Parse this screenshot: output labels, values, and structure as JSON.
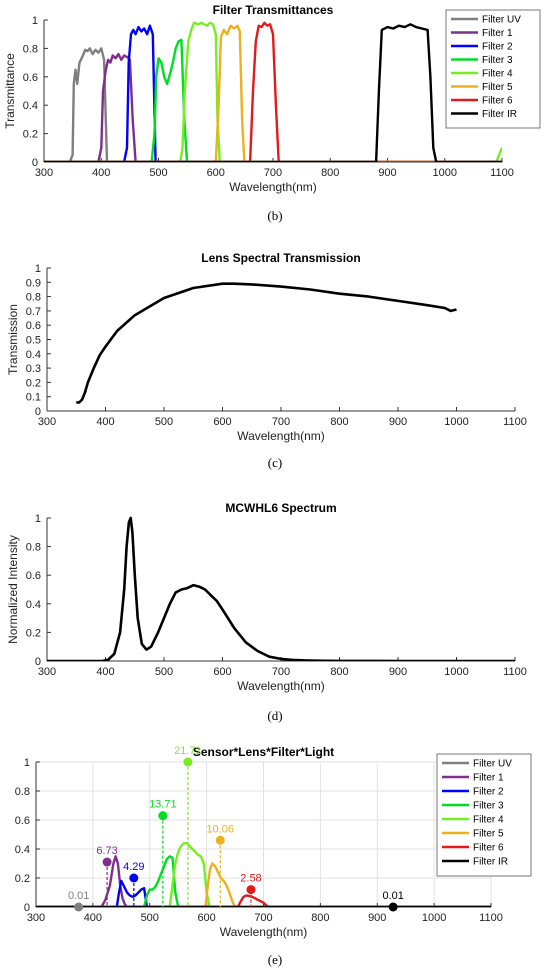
{
  "colors": {
    "Filter UV": "#7f7f7f",
    "Filter 1": "#7e2f8e",
    "Filter 2": "#0000ff",
    "Filter 3": "#00dd22",
    "Filter 4": "#77ee22",
    "Filter 5": "#edb120",
    "Filter 6": "#e31a1c",
    "Filter IR": "#000000"
  },
  "captions": {
    "b": "(b)",
    "c": "(c)",
    "d": "(d)",
    "e": "(e)"
  },
  "chart_data": [
    {
      "id": "b",
      "type": "line",
      "title": "Filter Transmittances",
      "xlabel": "Wavelength(nm)",
      "ylabel": "Transmittance",
      "xlim": [
        300,
        1100
      ],
      "ylim": [
        0,
        1
      ],
      "xticks": [
        300,
        400,
        500,
        600,
        700,
        800,
        900,
        1000,
        1100
      ],
      "yticks": [
        0,
        0.2,
        0.4,
        0.6,
        0.8,
        1
      ],
      "legend_position": "top-right",
      "grid": false,
      "series": [
        {
          "name": "Filter UV",
          "x": [
            300,
            345,
            350,
            352,
            355,
            358,
            362,
            368,
            372,
            376,
            380,
            385,
            390,
            395,
            400,
            405,
            410,
            450,
            1100
          ],
          "y": [
            0,
            0,
            0.05,
            0.55,
            0.65,
            0.55,
            0.7,
            0.75,
            0.79,
            0.78,
            0.8,
            0.76,
            0.79,
            0.77,
            0.8,
            0.72,
            0,
            0,
            0
          ]
        },
        {
          "name": "Filter 1",
          "x": [
            300,
            395,
            400,
            403,
            408,
            412,
            416,
            420,
            425,
            430,
            435,
            440,
            445,
            450,
            455,
            460,
            1100
          ],
          "y": [
            0,
            0,
            0.1,
            0.5,
            0.65,
            0.72,
            0.7,
            0.75,
            0.73,
            0.76,
            0.72,
            0.75,
            0.74,
            0.72,
            0.3,
            0,
            0
          ]
        },
        {
          "name": "Filter 2",
          "x": [
            300,
            440,
            445,
            448,
            452,
            456,
            460,
            465,
            470,
            475,
            480,
            485,
            490,
            495,
            1100
          ],
          "y": [
            0,
            0,
            0.1,
            0.7,
            0.9,
            0.93,
            0.9,
            0.95,
            0.92,
            0.94,
            0.9,
            0.96,
            0.9,
            0,
            0
          ]
        },
        {
          "name": "Filter 3",
          "x": [
            300,
            488,
            493,
            496,
            500,
            505,
            510,
            515,
            520,
            525,
            530,
            535,
            540,
            545,
            550,
            1100
          ],
          "y": [
            0,
            0,
            0.2,
            0.6,
            0.73,
            0.7,
            0.6,
            0.55,
            0.62,
            0.7,
            0.8,
            0.85,
            0.86,
            0.3,
            0,
            0
          ]
        },
        {
          "name": "Filter 4",
          "x": [
            300,
            538,
            542,
            546,
            552,
            558,
            562,
            570,
            575,
            580,
            585,
            590,
            595,
            600,
            603,
            607,
            1090,
            1095,
            1100
          ],
          "y": [
            0,
            0,
            0.1,
            0.5,
            0.85,
            0.94,
            0.98,
            0.97,
            0.98,
            0.97,
            0.96,
            0.98,
            0.97,
            0.9,
            0.3,
            0,
            0,
            0.05,
            0.1
          ]
        },
        {
          "name": "Filter 5",
          "x": [
            300,
            600,
            605,
            609,
            614,
            620,
            626,
            632,
            638,
            642,
            646,
            650,
            1100
          ],
          "y": [
            0,
            0,
            0.4,
            0.88,
            0.93,
            0.9,
            0.96,
            0.94,
            0.96,
            0.92,
            0.3,
            0,
            0
          ]
        },
        {
          "name": "Filter 6",
          "x": [
            300,
            660,
            665,
            670,
            675,
            680,
            685,
            690,
            695,
            700,
            705,
            710,
            1100
          ],
          "y": [
            0,
            0,
            0.5,
            0.85,
            0.96,
            0.95,
            0.98,
            0.96,
            0.97,
            0.9,
            0.4,
            0,
            0
          ]
        },
        {
          "name": "Filter IR",
          "x": [
            300,
            880,
            885,
            890,
            900,
            910,
            920,
            930,
            940,
            950,
            960,
            970,
            975,
            980,
            985,
            1100
          ],
          "y": [
            0,
            0,
            0.5,
            0.93,
            0.95,
            0.94,
            0.96,
            0.95,
            0.97,
            0.95,
            0.94,
            0.93,
            0.6,
            0.1,
            0,
            0
          ]
        }
      ]
    },
    {
      "id": "c",
      "type": "line",
      "title": "Lens Spectral Transmission",
      "xlabel": "Wavelength(nm)",
      "ylabel": "Transmission",
      "xlim": [
        300,
        1100
      ],
      "ylim": [
        0,
        1
      ],
      "xticks": [
        300,
        400,
        500,
        600,
        700,
        800,
        900,
        1000,
        1100
      ],
      "yticks": [
        0,
        0.1,
        0.2,
        0.3,
        0.4,
        0.5,
        0.6,
        0.7,
        0.8,
        0.9,
        1
      ],
      "grid": false,
      "series": [
        {
          "name": "",
          "x": [
            350,
            355,
            360,
            365,
            370,
            380,
            390,
            400,
            420,
            450,
            500,
            550,
            600,
            620,
            650,
            700,
            750,
            800,
            850,
            900,
            950,
            980,
            990,
            1000
          ],
          "y": [
            0.06,
            0.06,
            0.08,
            0.13,
            0.2,
            0.3,
            0.39,
            0.45,
            0.56,
            0.67,
            0.79,
            0.86,
            0.89,
            0.89,
            0.885,
            0.87,
            0.85,
            0.82,
            0.8,
            0.77,
            0.74,
            0.72,
            0.7,
            0.71
          ]
        }
      ]
    },
    {
      "id": "d",
      "type": "line",
      "title": "MCWHL6 Spectrum",
      "xlabel": "Wavelength(nm)",
      "ylabel": "Normalized Intensity",
      "xlim": [
        300,
        1100
      ],
      "ylim": [
        0,
        1
      ],
      "xticks": [
        300,
        400,
        500,
        600,
        700,
        800,
        900,
        1000,
        1100
      ],
      "yticks": [
        0,
        0.2,
        0.4,
        0.6,
        0.8,
        1
      ],
      "grid": false,
      "series": [
        {
          "name": "",
          "x": [
            300,
            395,
            405,
            415,
            425,
            432,
            436,
            440,
            443,
            446,
            450,
            455,
            462,
            470,
            478,
            490,
            500,
            510,
            520,
            530,
            540,
            550,
            560,
            570,
            580,
            590,
            600,
            620,
            640,
            660,
            680,
            700,
            720,
            740,
            760,
            800,
            900,
            1000,
            1100
          ],
          "y": [
            0,
            0,
            0.01,
            0.05,
            0.2,
            0.5,
            0.8,
            0.97,
            1.0,
            0.9,
            0.6,
            0.3,
            0.12,
            0.08,
            0.1,
            0.2,
            0.3,
            0.4,
            0.48,
            0.5,
            0.51,
            0.53,
            0.52,
            0.5,
            0.46,
            0.42,
            0.36,
            0.23,
            0.13,
            0.07,
            0.03,
            0.015,
            0.008,
            0.004,
            0.002,
            0.001,
            0,
            0,
            0
          ]
        }
      ]
    },
    {
      "id": "e",
      "type": "line",
      "title": "Sensor*Lens*Filter*Light",
      "xlabel": "Wavelength(nm)",
      "xlim": [
        300,
        1100
      ],
      "ylim": [
        0,
        1
      ],
      "xticks": [
        300,
        400,
        500,
        600,
        700,
        800,
        900,
        1000,
        1100
      ],
      "yticks": [
        0,
        0.2,
        0.4,
        0.6,
        0.8,
        1
      ],
      "legend_position": "top-right",
      "grid": true,
      "series": [
        {
          "name": "Filter UV",
          "x": [
            300,
            1100
          ],
          "y": [
            0,
            0
          ]
        },
        {
          "name": "Filter 1",
          "x": [
            300,
            415,
            422,
            430,
            436,
            440,
            444,
            448,
            452,
            456,
            460,
            1100
          ],
          "y": [
            0,
            0,
            0.05,
            0.15,
            0.3,
            0.35,
            0.3,
            0.15,
            0.06,
            0.02,
            0,
            0
          ]
        },
        {
          "name": "Filter 2",
          "x": [
            300,
            442,
            446,
            450,
            455,
            460,
            465,
            470,
            475,
            480,
            485,
            490,
            495,
            1100
          ],
          "y": [
            0,
            0,
            0.1,
            0.18,
            0.14,
            0.1,
            0.08,
            0.07,
            0.08,
            0.1,
            0.12,
            0.13,
            0,
            0
          ]
        },
        {
          "name": "Filter 3",
          "x": [
            300,
            490,
            495,
            500,
            505,
            510,
            515,
            520,
            525,
            530,
            535,
            540,
            545,
            550,
            1100
          ],
          "y": [
            0,
            0,
            0.08,
            0.12,
            0.12,
            0.14,
            0.18,
            0.23,
            0.28,
            0.33,
            0.35,
            0.34,
            0.1,
            0,
            0
          ]
        },
        {
          "name": "Filter 4",
          "x": [
            300,
            535,
            540,
            545,
            550,
            555,
            560,
            565,
            570,
            575,
            580,
            585,
            590,
            595,
            600,
            605,
            1100
          ],
          "y": [
            0,
            0,
            0.15,
            0.3,
            0.38,
            0.42,
            0.44,
            0.44,
            0.42,
            0.4,
            0.38,
            0.36,
            0.35,
            0.3,
            0.1,
            0,
            0
          ]
        },
        {
          "name": "Filter 5",
          "x": [
            300,
            598,
            602,
            606,
            610,
            615,
            620,
            625,
            630,
            635,
            640,
            645,
            650,
            1100
          ],
          "y": [
            0,
            0,
            0.15,
            0.26,
            0.3,
            0.28,
            0.24,
            0.2,
            0.18,
            0.15,
            0.1,
            0.04,
            0,
            0
          ]
        },
        {
          "name": "Filter 6",
          "x": [
            300,
            655,
            660,
            665,
            670,
            675,
            680,
            685,
            690,
            700,
            705,
            710,
            1100
          ],
          "y": [
            0,
            0,
            0.04,
            0.07,
            0.08,
            0.075,
            0.07,
            0.06,
            0.05,
            0.03,
            0.01,
            0,
            0
          ]
        },
        {
          "name": "Filter IR",
          "x": [
            300,
            1100
          ],
          "y": [
            0,
            0
          ]
        }
      ],
      "annotations": [
        {
          "series": "Filter UV",
          "x": 375,
          "y": 0.0,
          "label": "0.01"
        },
        {
          "series": "Filter 1",
          "x": 425,
          "y": 0.31,
          "label": "6.73"
        },
        {
          "series": "Filter 2",
          "x": 472,
          "y": 0.2,
          "label": "4.29"
        },
        {
          "series": "Filter 3",
          "x": 523,
          "y": 0.63,
          "label": "13.71"
        },
        {
          "series": "Filter 4",
          "x": 567,
          "y": 1.0,
          "label": "21.71"
        },
        {
          "series": "Filter 5",
          "x": 624,
          "y": 0.46,
          "label": "10.06"
        },
        {
          "series": "Filter 6",
          "x": 678,
          "y": 0.12,
          "label": "2.58"
        },
        {
          "series": "Filter IR",
          "x": 928,
          "y": 0.0,
          "label": "0.01"
        }
      ]
    }
  ]
}
